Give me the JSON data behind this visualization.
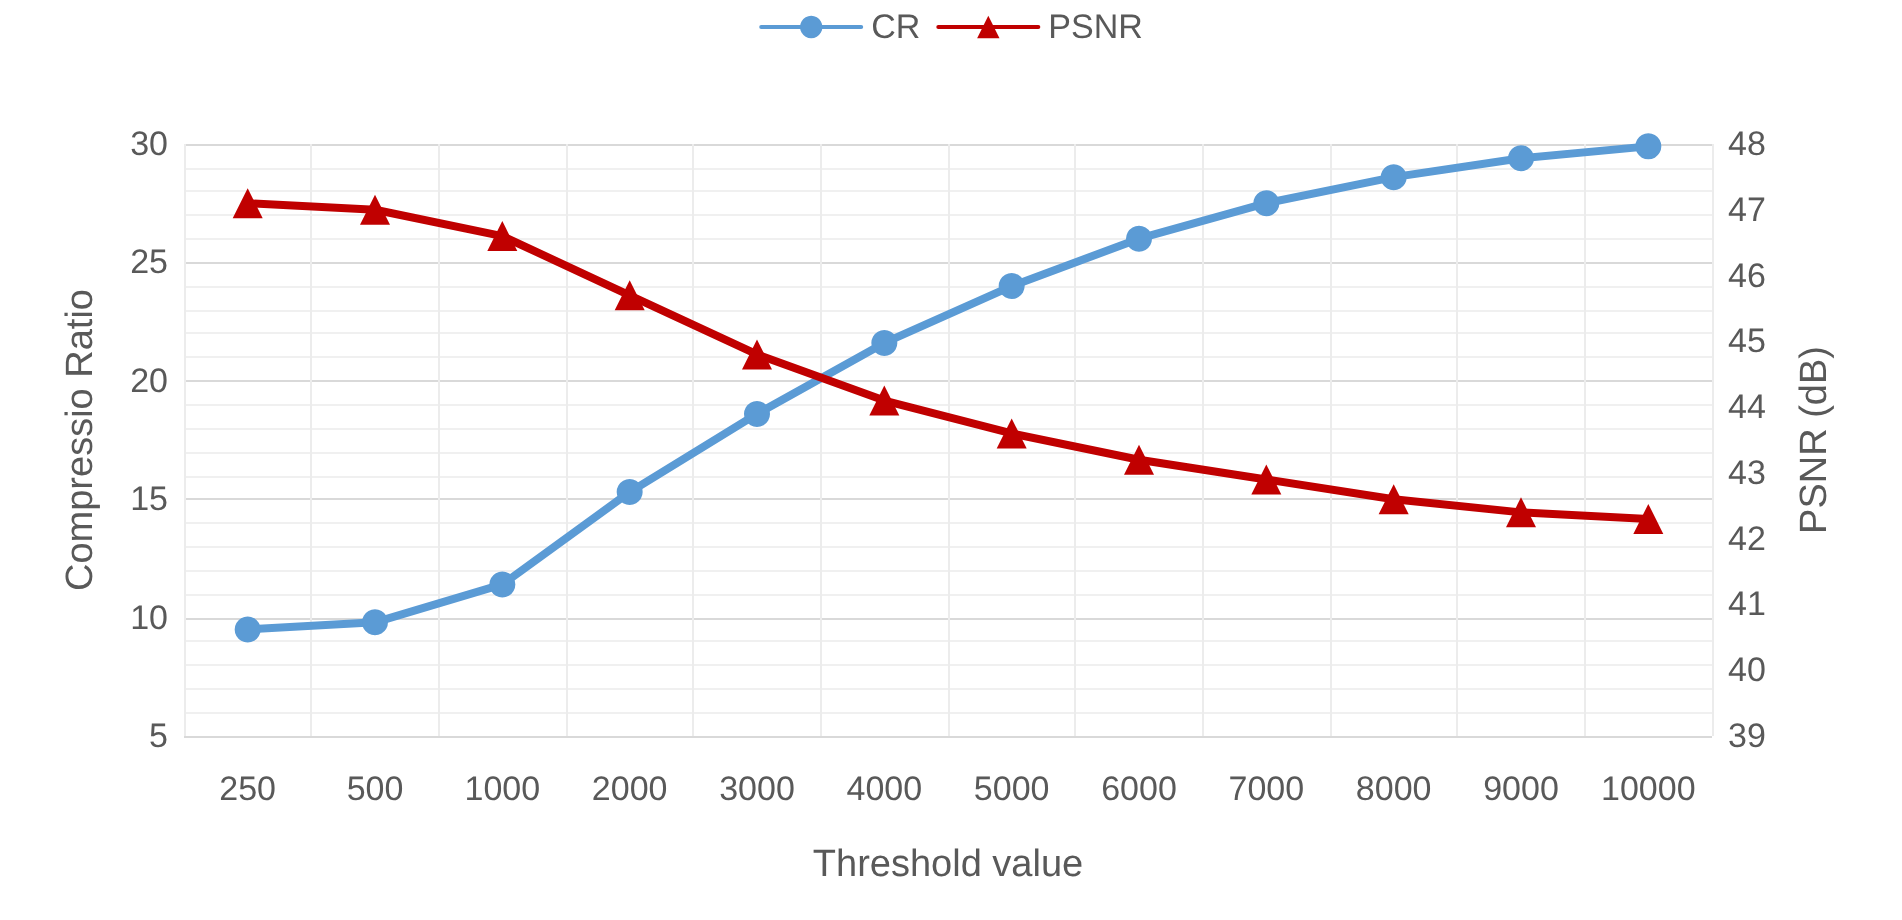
{
  "chart_data": {
    "type": "line",
    "xlabel": "Threshold value",
    "ylabel": "Compressio Ratio",
    "y2label": "PSNR (dB)",
    "categories": [
      "250",
      "500",
      "1000",
      "2000",
      "3000",
      "4000",
      "5000",
      "6000",
      "7000",
      "8000",
      "9000",
      "10000"
    ],
    "series": [
      {
        "name": "CR",
        "color": "#5b9bd5",
        "marker": "circle",
        "values": [
          9.5,
          9.8,
          11.4,
          15.3,
          18.6,
          21.6,
          24.0,
          26.0,
          27.5,
          28.6,
          29.4,
          29.9
        ]
      },
      {
        "name": "PSNR",
        "color": "#c00000",
        "marker": "triangle",
        "axis": "y2",
        "values": [
          47.1,
          47.0,
          46.6,
          45.7,
          44.8,
          44.1,
          43.6,
          43.2,
          42.9,
          42.6,
          42.4,
          42.3
        ]
      }
    ],
    "ylim": [
      5,
      30
    ],
    "yticks": [
      5,
      10,
      15,
      20,
      25,
      30
    ],
    "y2lim": [
      39,
      48
    ],
    "y2ticks": [
      39,
      40,
      41,
      42,
      43,
      44,
      45,
      46,
      47,
      48
    ],
    "grid": true,
    "legend": "top"
  }
}
